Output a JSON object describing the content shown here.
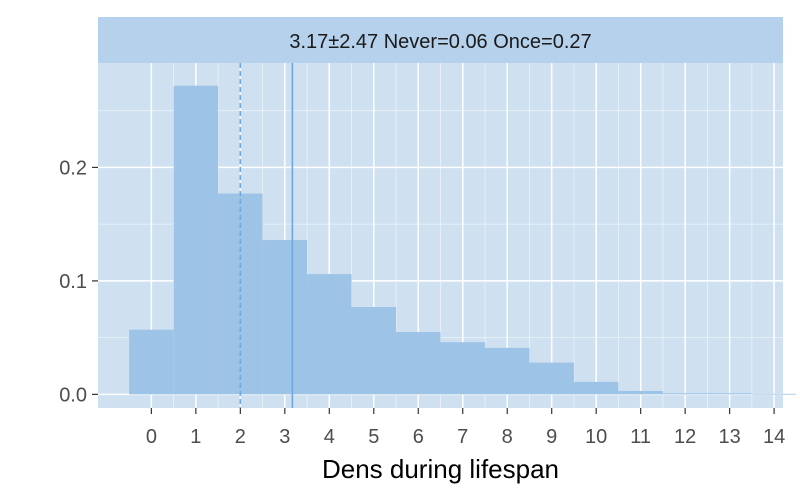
{
  "chart_data": {
    "type": "bar",
    "strip_label": "3.17±2.47 Never=0.06 Once=0.27",
    "xlabel": "Dens during lifespan",
    "ylabel": "",
    "x": [
      0,
      1,
      2,
      3,
      4,
      5,
      6,
      7,
      8,
      9,
      10,
      11,
      12,
      13,
      14
    ],
    "values": [
      0.057,
      0.272,
      0.177,
      0.136,
      0.106,
      0.077,
      0.055,
      0.046,
      0.041,
      0.028,
      0.011,
      0.003,
      0.001,
      0.001,
      0.0005
    ],
    "xticks": [
      "0",
      "1",
      "2",
      "3",
      "4",
      "5",
      "6",
      "7",
      "8",
      "9",
      "10",
      "11",
      "12",
      "13",
      "14"
    ],
    "yticks": [
      "0.0",
      "0.1",
      "0.2"
    ],
    "ytick_values": [
      0.0,
      0.1,
      0.2
    ],
    "xlim": [
      -1.2,
      14.2
    ],
    "ylim": [
      -0.012,
      0.292
    ],
    "mean": 3.17,
    "median": 2,
    "grid": true,
    "colors": {
      "panel_bg": "#cfe0f1",
      "strip_bg": "#b5d1ec",
      "bar": "#9dc3e6",
      "grid": "#ffffff",
      "mean_line": "#6fa8dc",
      "median_line": "#6fa8dc"
    }
  }
}
